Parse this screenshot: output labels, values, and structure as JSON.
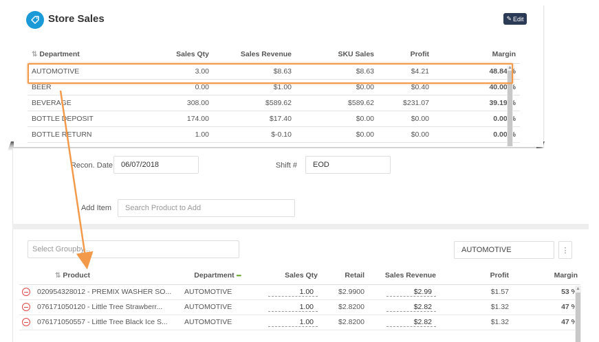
{
  "store_sales": {
    "title": "Store Sales",
    "edit_label": "Edit",
    "columns": [
      "Department",
      "Sales Qty",
      "Sales Revenue",
      "SKU Sales",
      "Profit",
      "Margin"
    ],
    "rows": [
      {
        "department": "AUTOMOTIVE",
        "sales_qty": "3.00",
        "sales_revenue": "$8.63",
        "sku_sales": "$8.63",
        "profit": "$4.21",
        "margin": "48.84 %"
      },
      {
        "department": "BEER",
        "sales_qty": "0.00",
        "sales_revenue": "$1.00",
        "sku_sales": "$0.00",
        "profit": "$0.40",
        "margin": "40.00 %"
      },
      {
        "department": "BEVERAGE",
        "sales_qty": "308.00",
        "sales_revenue": "$589.62",
        "sku_sales": "$589.62",
        "profit": "$231.07",
        "margin": "39.19 %"
      },
      {
        "department": "BOTTLE DEPOSIT",
        "sales_qty": "174.00",
        "sales_revenue": "$17.40",
        "sku_sales": "$0.00",
        "profit": "$0.00",
        "margin": "0.00 %"
      },
      {
        "department": "BOTTLE RETURN",
        "sales_qty": "1.00",
        "sales_revenue": "$-0.10",
        "sku_sales": "$0.00",
        "profit": "$0.00",
        "margin": "0.00 %"
      }
    ]
  },
  "form": {
    "recon_date_label": "Recon. Date",
    "recon_date_value": "06/07/2018",
    "shift_label": "Shift #",
    "shift_value": "EOD",
    "add_item_label": "Add Item",
    "add_item_placeholder": "Search Product to Add"
  },
  "filters": {
    "groupby_placeholder": "Select Groupby...",
    "department_value": "AUTOMOTIVE",
    "menu_icon": "vertical-dots-icon"
  },
  "products": {
    "columns": [
      "Product",
      "Department",
      "Sales Qty",
      "Retail",
      "Sales Revenue",
      "Profit",
      "Margin"
    ],
    "rows": [
      {
        "product": "020954328012 - PREMIX WASHER SO...",
        "department": "AUTOMOTIVE",
        "sales_qty": "1.00",
        "retail": "$2.9900",
        "sales_revenue": "$2.99",
        "profit": "$1.57",
        "margin": "53 %"
      },
      {
        "product": "076171050120 - Little Tree Strawberr...",
        "department": "AUTOMOTIVE",
        "sales_qty": "1.00",
        "retail": "$2.8200",
        "sales_revenue": "$2.82",
        "profit": "$1.32",
        "margin": "47 %"
      },
      {
        "product": "076171050557 - Little Tree Black Ice S...",
        "department": "AUTOMOTIVE",
        "sales_qty": "1.00",
        "retail": "$2.8200",
        "sales_revenue": "$2.82",
        "profit": "$1.32",
        "margin": "47 %"
      }
    ]
  },
  "colors": {
    "accent_blue": "#1a9ad6",
    "margin_green": "#6cab2f",
    "highlight_orange": "#f39a4a",
    "remove_red": "#e04646",
    "edit_button_bg": "#2b3a55"
  }
}
